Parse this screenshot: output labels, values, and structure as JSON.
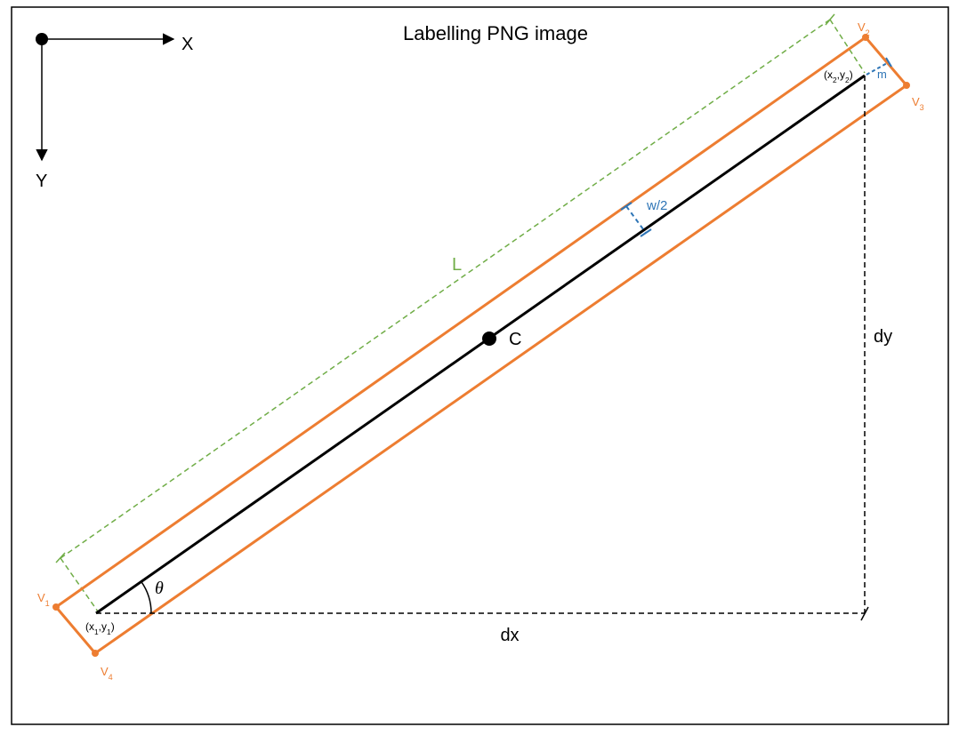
{
  "title": "Labelling PNG image",
  "axes": {
    "x": "X",
    "y": "Y"
  },
  "labels": {
    "length": "L",
    "center": "C",
    "dx": "dx",
    "dy": "dy",
    "half_width": "w/2",
    "margin": "m",
    "angle": "θ"
  },
  "vertices": [
    [
      "V",
      "1"
    ],
    [
      "V",
      "2"
    ],
    [
      "V",
      "3"
    ],
    [
      "V",
      "4"
    ]
  ],
  "points": [
    [
      "(x",
      "1",
      ",y",
      "1",
      ")"
    ],
    [
      "(x",
      "2",
      ",y",
      "2",
      ")"
    ]
  ]
}
